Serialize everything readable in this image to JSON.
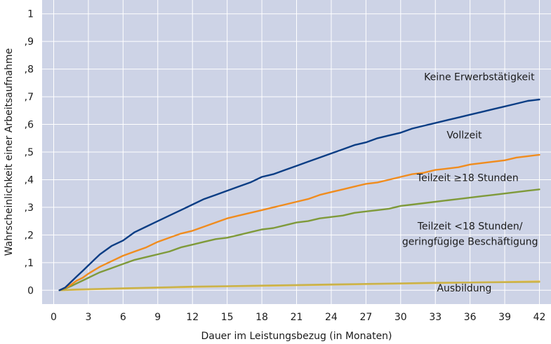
{
  "chart_data": {
    "type": "line",
    "title": "",
    "xlabel": "Dauer im Leistungsbezug (in Monaten)",
    "ylabel": "Wahrscheinlichkeit einer Arbeitsaufnahme",
    "xlim": [
      -1,
      43
    ],
    "ylim": [
      -0.05,
      1.05
    ],
    "x_ticks": [
      0,
      3,
      6,
      9,
      12,
      15,
      18,
      21,
      24,
      27,
      30,
      33,
      36,
      39,
      42
    ],
    "x_tick_labels": [
      "0",
      "3",
      "6",
      "9",
      "12",
      "15",
      "18",
      "21",
      "24",
      "27",
      "30",
      "33",
      "36",
      "39",
      "42"
    ],
    "y_ticks": [
      0,
      0.1,
      0.2,
      0.3,
      0.4,
      0.5,
      0.6,
      0.7,
      0.8,
      0.9,
      1
    ],
    "y_tick_labels": [
      "0",
      ",1",
      ",2",
      ",3",
      ",4",
      ",5",
      ",6",
      ",7",
      ",8",
      ",9",
      "1"
    ],
    "grid": true,
    "background_color": "#cdd3e6",
    "grid_color": "#ffffff",
    "series": [
      {
        "name": "Keine Erwerbstätigkeit",
        "color": "#0a3d84",
        "x": [
          0.5,
          1,
          1.5,
          2,
          2.5,
          3,
          3.5,
          4,
          5,
          6,
          7,
          8,
          9,
          10,
          11,
          12,
          13,
          14,
          15,
          16,
          17,
          18,
          19,
          20,
          21,
          22,
          23,
          24,
          25,
          26,
          27,
          28,
          29,
          30,
          31,
          32,
          33,
          34,
          35,
          36,
          37,
          38,
          39,
          40,
          41,
          42
        ],
        "values": [
          0,
          0.01,
          0.03,
          0.05,
          0.07,
          0.09,
          0.11,
          0.13,
          0.16,
          0.18,
          0.21,
          0.23,
          0.25,
          0.27,
          0.29,
          0.31,
          0.33,
          0.345,
          0.36,
          0.375,
          0.39,
          0.41,
          0.42,
          0.435,
          0.45,
          0.465,
          0.48,
          0.495,
          0.51,
          0.525,
          0.535,
          0.55,
          0.56,
          0.57,
          0.585,
          0.595,
          0.605,
          0.615,
          0.625,
          0.635,
          0.645,
          0.655,
          0.665,
          0.675,
          0.685,
          0.69
        ]
      },
      {
        "name": "Vollzeit",
        "color": "#f08c1e",
        "x": [
          0.5,
          1,
          1.5,
          2,
          2.5,
          3,
          4,
          5,
          6,
          7,
          8,
          9,
          10,
          11,
          12,
          13,
          14,
          15,
          16,
          17,
          18,
          19,
          20,
          21,
          22,
          23,
          24,
          25,
          26,
          27,
          28,
          29,
          30,
          31,
          32,
          33,
          34,
          35,
          36,
          37,
          38,
          39,
          40,
          41,
          42
        ],
        "values": [
          0,
          0.008,
          0.02,
          0.035,
          0.045,
          0.06,
          0.085,
          0.105,
          0.125,
          0.14,
          0.155,
          0.175,
          0.19,
          0.205,
          0.215,
          0.23,
          0.245,
          0.26,
          0.27,
          0.28,
          0.29,
          0.3,
          0.31,
          0.32,
          0.33,
          0.345,
          0.355,
          0.365,
          0.375,
          0.385,
          0.39,
          0.4,
          0.41,
          0.42,
          0.425,
          0.435,
          0.44,
          0.445,
          0.455,
          0.46,
          0.465,
          0.47,
          0.48,
          0.485,
          0.49
        ]
      },
      {
        "name": "Teilzeit ≥18 Stunden",
        "color": "#7f9a3a",
        "x": [
          0.5,
          1,
          1.5,
          2,
          2.5,
          3,
          4,
          5,
          6,
          7,
          8,
          9,
          10,
          11,
          12,
          13,
          14,
          15,
          16,
          17,
          18,
          19,
          20,
          21,
          22,
          23,
          24,
          25,
          26,
          27,
          28,
          29,
          30,
          31,
          32,
          33,
          34,
          35,
          36,
          37,
          38,
          39,
          40,
          41,
          42
        ],
        "values": [
          0,
          0.006,
          0.015,
          0.025,
          0.035,
          0.045,
          0.065,
          0.08,
          0.095,
          0.11,
          0.12,
          0.13,
          0.14,
          0.155,
          0.165,
          0.175,
          0.185,
          0.19,
          0.2,
          0.21,
          0.22,
          0.225,
          0.235,
          0.245,
          0.25,
          0.26,
          0.265,
          0.27,
          0.28,
          0.285,
          0.29,
          0.295,
          0.305,
          0.31,
          0.315,
          0.32,
          0.325,
          0.33,
          0.335,
          0.34,
          0.345,
          0.35,
          0.355,
          0.36,
          0.365
        ]
      },
      {
        "name": "Teilzeit <18 Stunden/ geringfügige Beschäftigung",
        "color": "#c9b24a",
        "x": [
          0.5,
          2,
          4,
          6,
          8,
          10,
          12,
          15,
          18,
          21,
          24,
          27,
          30,
          33,
          36,
          39,
          42
        ],
        "values": [
          0,
          0.003,
          0.005,
          0.007,
          0.009,
          0.011,
          0.013,
          0.015,
          0.017,
          0.019,
          0.021,
          0.023,
          0.025,
          0.027,
          0.028,
          0.029,
          0.03
        ]
      },
      {
        "name": "Ausbildung",
        "color": "#f5c23c",
        "x": [
          0.5,
          2,
          4,
          6,
          8,
          10,
          12,
          15,
          18,
          21,
          24,
          27,
          30,
          33,
          36,
          39,
          42
        ],
        "values": [
          0,
          0.002,
          0.004,
          0.006,
          0.008,
          0.01,
          0.012,
          0.014,
          0.016,
          0.018,
          0.02,
          0.022,
          0.024,
          0.026,
          0.028,
          0.03,
          0.032
        ]
      }
    ],
    "annotations": [
      {
        "series": 0,
        "text": "Keine Erwerbstätigkeit",
        "lines": [
          "Keine Erwerbstätigkeit"
        ],
        "at_x": 36.8,
        "at_y": 0.76
      },
      {
        "series": 1,
        "text": "Vollzeit",
        "lines": [
          "Vollzeit"
        ],
        "at_x": 35.5,
        "at_y": 0.55
      },
      {
        "series": 2,
        "text": "Teilzeit ≥18 Stunden",
        "lines": [
          "Teilzeit ≥18 Stunden"
        ],
        "at_x": 35.8,
        "at_y": 0.395
      },
      {
        "series": 3,
        "text": "Teilzeit <18 Stunden/ geringfügige Beschäftigung",
        "lines": [
          "Teilzeit <18 Stunden/",
          "geringfügige Beschäftigung"
        ],
        "at_x": 36.0,
        "at_y": 0.22
      },
      {
        "series": 4,
        "text": "Ausbildung",
        "lines": [
          "Ausbildung"
        ],
        "at_x": 35.5,
        "at_y": -0.005
      }
    ]
  }
}
